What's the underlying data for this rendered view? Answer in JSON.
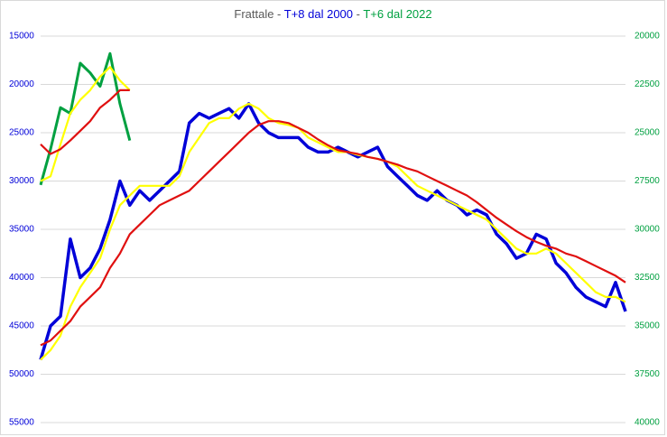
{
  "chart_data": {
    "type": "line",
    "title": [
      "Frattale - ",
      "T+8 dal 2000",
      " - ",
      "T+6 dal 2022"
    ],
    "ylim": [
      15000,
      55000
    ],
    "yticks": [
      15000,
      20000,
      25000,
      30000,
      35000,
      40000,
      45000,
      50000,
      55000
    ],
    "y2lim": [
      20000,
      40000
    ],
    "y2ticks": [
      20000,
      22500,
      25000,
      27500,
      30000,
      32500,
      35000,
      37500,
      40000
    ],
    "inverted": true,
    "grid": true,
    "series": [
      {
        "color": "#0000d8",
        "values": [
          48500,
          45000,
          44000,
          36000,
          40000,
          39000,
          37000,
          34000,
          30000,
          32500,
          31000,
          32000,
          31000,
          30000,
          29000,
          24000,
          23000,
          23500,
          23000,
          22500,
          23500,
          22000,
          24000,
          25000,
          25500,
          25500,
          25500,
          26500,
          27000,
          27000,
          26500,
          27000,
          27500,
          27000,
          26500,
          28500,
          29500,
          30500,
          31500,
          32000,
          31000,
          32000,
          32500,
          33500,
          33000,
          33500,
          35500,
          36500,
          38000,
          37500,
          35500,
          36000,
          38500,
          39500,
          41000,
          42000,
          42500,
          43000,
          40500,
          43500
        ]
      },
      {
        "color": "#ffff00",
        "values": [
          48500,
          47500,
          46000,
          43000,
          41000,
          39500,
          38000,
          35000,
          32500,
          31500,
          30500,
          30500,
          30500,
          30500,
          29500,
          27000,
          25500,
          24000,
          23500,
          23500,
          22500,
          22000,
          22500,
          23500,
          24000,
          24200,
          24500,
          25500,
          26000,
          26500,
          27000,
          27000,
          27300,
          27500,
          27700,
          28000,
          28500,
          29500,
          30500,
          31000,
          31500,
          32000,
          32500,
          33000,
          33500,
          34000,
          35000,
          36000,
          37000,
          37500,
          37500,
          37000,
          37500,
          38500,
          39500,
          40500,
          41500,
          42000,
          42000,
          42500
        ]
      },
      {
        "color": "#e01010",
        "values": [
          47000,
          46500,
          45500,
          44500,
          43000,
          42000,
          41000,
          39000,
          37500,
          35500,
          34500,
          33500,
          32500,
          32000,
          31500,
          31000,
          30000,
          29000,
          28000,
          27000,
          26000,
          25000,
          24200,
          23800,
          23800,
          24000,
          24500,
          25000,
          25700,
          26300,
          26800,
          27000,
          27200,
          27500,
          27700,
          28000,
          28300,
          28700,
          29000,
          29500,
          30000,
          30500,
          31000,
          31500,
          32200,
          33000,
          33800,
          34500,
          35200,
          35800,
          36300,
          36700,
          37000,
          37500,
          37800,
          38300,
          38800,
          39300,
          39800,
          40500
        ]
      },
      {
        "color": "#00a040",
        "axis": "y2",
        "values": [
          27700,
          25850,
          23700,
          24000,
          21400,
          21900,
          22600,
          20900,
          23500,
          25400,
          null,
          null,
          null,
          null,
          null,
          null,
          null,
          null,
          null,
          null,
          null,
          null,
          null,
          null,
          null,
          null,
          null,
          null,
          null,
          null,
          null,
          null,
          null,
          null,
          null,
          null,
          null,
          null,
          null,
          null,
          null,
          null,
          null,
          null,
          null,
          null,
          null,
          null,
          null,
          null,
          null,
          null,
          null,
          null,
          null,
          null,
          null,
          null,
          null,
          null
        ]
      },
      {
        "color": "#ffff00",
        "axis": "y2",
        "values": [
          27500,
          27250,
          25600,
          24000,
          23300,
          22800,
          22100,
          21600,
          22300,
          22800,
          null,
          null,
          null,
          null,
          null,
          null,
          null,
          null,
          null,
          null,
          null,
          null,
          null,
          null,
          null,
          null,
          null,
          null,
          null,
          null,
          null,
          null,
          null,
          null,
          null,
          null,
          null,
          null,
          null,
          null,
          null,
          null,
          null,
          null,
          null,
          null,
          null,
          null,
          null,
          null,
          null,
          null,
          null,
          null,
          null,
          null,
          null,
          null,
          null,
          null
        ]
      },
      {
        "color": "#e01010",
        "axis": "y2",
        "values": [
          25600,
          26100,
          25850,
          25400,
          24900,
          24400,
          23700,
          23300,
          22800,
          22800,
          null,
          null,
          null,
          null,
          null,
          null,
          null,
          null,
          null,
          null,
          null,
          null,
          null,
          null,
          null,
          null,
          null,
          null,
          null,
          null,
          null,
          null,
          null,
          null,
          null,
          null,
          null,
          null,
          null,
          null,
          null,
          null,
          null,
          null,
          null,
          null,
          null,
          null,
          null,
          null,
          null,
          null,
          null,
          null,
          null,
          null,
          null,
          null,
          null,
          null
        ]
      }
    ]
  }
}
